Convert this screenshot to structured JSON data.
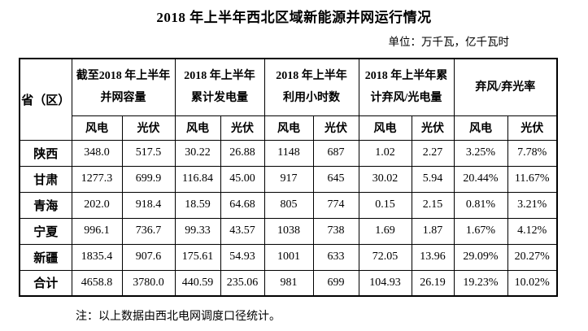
{
  "document": {
    "title": "2018 年上半年西北区域新能源并网运行情况",
    "unit_label": "单位：万千瓦，亿千瓦时",
    "note": "注：以上数据由西北电网调度口径统计。"
  },
  "table": {
    "corner_header": "省（区）",
    "group_headers": [
      {
        "lines": [
          "截至2018 年上半年",
          "并网容量"
        ]
      },
      {
        "lines": [
          "2018 年上半年",
          "累计发电量"
        ]
      },
      {
        "lines": [
          "2018 年上半年",
          "利用小时数"
        ]
      },
      {
        "lines": [
          "2018 年上半年累",
          "计弃风/光电量"
        ]
      },
      {
        "lines": [
          "弃风/弃光率"
        ]
      }
    ],
    "sub_headers": [
      "风电",
      "光伏",
      "风电",
      "光伏",
      "风电",
      "光伏",
      "风电",
      "光伏",
      "风电",
      "光伏"
    ],
    "rows": [
      {
        "province": "陕西",
        "values": [
          "348.0",
          "517.5",
          "30.22",
          "26.88",
          "1148",
          "687",
          "1.02",
          "2.27",
          "3.25%",
          "7.78%"
        ]
      },
      {
        "province": "甘肃",
        "values": [
          "1277.3",
          "699.9",
          "116.84",
          "45.00",
          "917",
          "645",
          "30.02",
          "5.94",
          "20.44%",
          "11.67%"
        ]
      },
      {
        "province": "青海",
        "values": [
          "202.0",
          "918.4",
          "18.59",
          "64.68",
          "805",
          "774",
          "0.15",
          "2.15",
          "0.81%",
          "3.21%"
        ]
      },
      {
        "province": "宁夏",
        "values": [
          "996.1",
          "736.7",
          "99.33",
          "43.57",
          "1038",
          "738",
          "1.69",
          "1.87",
          "1.67%",
          "4.12%"
        ]
      },
      {
        "province": "新疆",
        "values": [
          "1835.4",
          "907.6",
          "175.61",
          "54.93",
          "1001",
          "633",
          "72.05",
          "13.96",
          "29.09%",
          "20.27%"
        ]
      },
      {
        "province": "合计",
        "values": [
          "4658.8",
          "3780.0",
          "440.59",
          "235.06",
          "981",
          "699",
          "104.93",
          "26.19",
          "19.23%",
          "10.02%"
        ]
      }
    ]
  },
  "colors": {
    "text": "#000000",
    "border": "#000000",
    "background": "#ffffff"
  }
}
